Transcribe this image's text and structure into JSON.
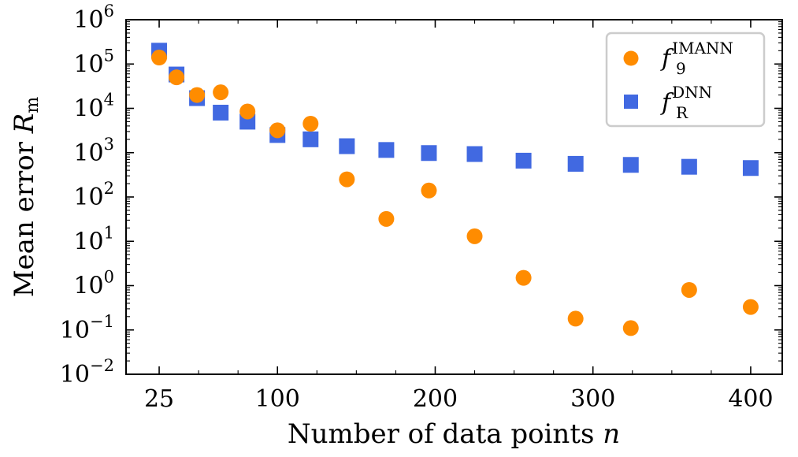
{
  "chart_data": {
    "type": "scatter",
    "xlabel": "Number of data points",
    "xlabel_var": "n",
    "ylabel": "Mean error",
    "ylabel_var": "R",
    "ylabel_sub": "m",
    "x_scale": "linear",
    "y_scale": "log",
    "xlim": [
      4,
      420
    ],
    "ylim_log10": [
      -2,
      6
    ],
    "x_ticks": [
      25,
      100,
      200,
      300,
      400
    ],
    "y_ticks": [
      {
        "base": "10",
        "exp": "6"
      },
      {
        "base": "10",
        "exp": "5"
      },
      {
        "base": "10",
        "exp": "4"
      },
      {
        "base": "10",
        "exp": "3"
      },
      {
        "base": "10",
        "exp": "2"
      },
      {
        "base": "10",
        "exp": "1"
      },
      {
        "base": "10",
        "exp": "0"
      },
      {
        "base": "10",
        "exp": "−1"
      },
      {
        "base": "10",
        "exp": "−2"
      }
    ],
    "y_tick_values": [
      6,
      5,
      4,
      3,
      2,
      1,
      0,
      -1,
      -2
    ],
    "legend_position": "top-right",
    "series": [
      {
        "name": "IMANN",
        "legend_base": "f",
        "legend_sub": "9",
        "legend_sup": "IMANN",
        "marker": "circle",
        "color": "#ff8c00",
        "x": [
          25,
          36,
          49,
          64,
          81,
          100,
          121,
          144,
          169,
          196,
          225,
          256,
          289,
          324,
          361,
          400
        ],
        "y": [
          140000,
          50000,
          20000,
          23000,
          8500,
          3200,
          4500,
          250,
          32,
          140,
          13,
          1.5,
          0.18,
          0.11,
          0.8,
          0.33
        ]
      },
      {
        "name": "DNN",
        "legend_base": "f",
        "legend_sub": "R",
        "legend_sup": "DNN",
        "marker": "square",
        "color": "#4169e1",
        "x": [
          25,
          36,
          49,
          64,
          81,
          100,
          121,
          144,
          169,
          196,
          225,
          256,
          289,
          324,
          361,
          400
        ],
        "y": [
          200000,
          58000,
          17000,
          8000,
          5000,
          2500,
          2000,
          1400,
          1150,
          980,
          930,
          660,
          560,
          530,
          480,
          450
        ]
      }
    ]
  }
}
